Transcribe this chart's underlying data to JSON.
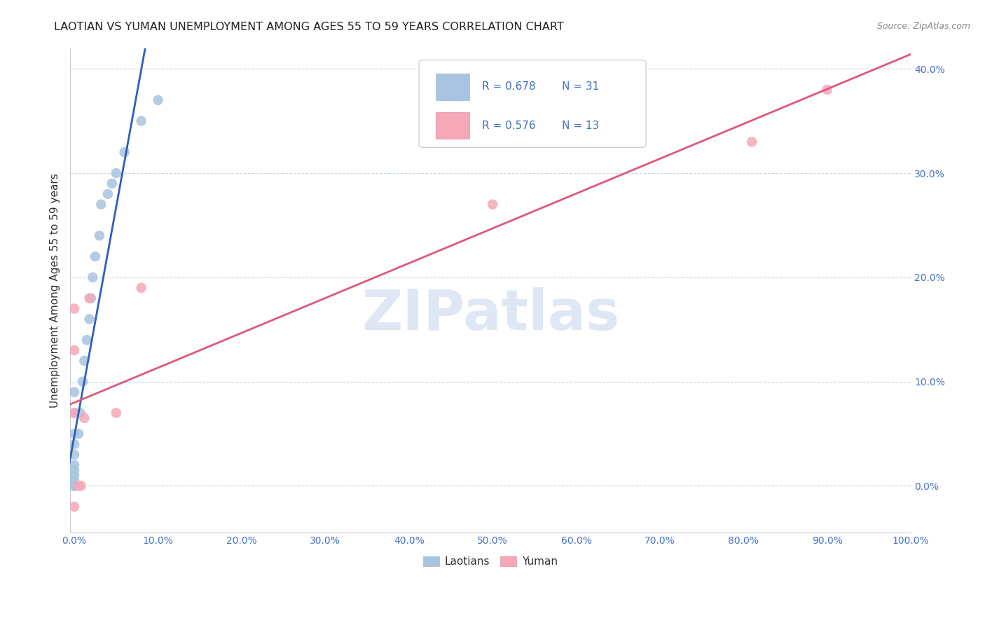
{
  "title": "LAOTIAN VS YUMAN UNEMPLOYMENT AMONG AGES 55 TO 59 YEARS CORRELATION CHART",
  "source": "Source: ZipAtlas.com",
  "ylabel": "Unemployment Among Ages 55 to 59 years",
  "xlim": [
    -0.005,
    1.0
  ],
  "ylim": [
    -0.045,
    0.42
  ],
  "xticks": [
    0.0,
    0.1,
    0.2,
    0.3,
    0.4,
    0.5,
    0.6,
    0.7,
    0.8,
    0.9,
    1.0
  ],
  "xtick_labels": [
    "0.0%",
    "10.0%",
    "20.0%",
    "30.0%",
    "40.0%",
    "50.0%",
    "60.0%",
    "70.0%",
    "80.0%",
    "90.0%",
    "100.0%"
  ],
  "yticks": [
    0.0,
    0.1,
    0.2,
    0.3,
    0.4
  ],
  "ytick_labels": [
    "0.0%",
    "10.0%",
    "20.0%",
    "30.0%",
    "40.0%"
  ],
  "laotian_color": "#a8c4e0",
  "yuman_color": "#f4a8b8",
  "trend_laotian_color": "#2c5fba",
  "trend_yuman_color": "#e05878",
  "R_laotian": 0.678,
  "N_laotian": 31,
  "R_yuman": 0.576,
  "N_yuman": 13,
  "legend_labels": [
    "Laotians",
    "Yuman"
  ],
  "laotian_x": [
    0.0,
    0.0,
    0.0,
    0.0,
    0.0,
    0.0,
    0.0,
    0.0,
    0.0,
    0.0,
    0.0,
    0.0,
    0.0,
    0.0,
    0.005,
    0.007,
    0.01,
    0.012,
    0.015,
    0.018,
    0.02,
    0.022,
    0.025,
    0.03,
    0.032,
    0.04,
    0.045,
    0.05,
    0.06,
    0.08,
    0.1
  ],
  "laotian_y": [
    0.0,
    0.0,
    0.0,
    0.0,
    0.0,
    0.005,
    0.01,
    0.015,
    0.02,
    0.03,
    0.04,
    0.05,
    0.07,
    0.09,
    0.05,
    0.07,
    0.1,
    0.12,
    0.14,
    0.16,
    0.18,
    0.2,
    0.22,
    0.24,
    0.27,
    0.28,
    0.29,
    0.3,
    0.32,
    0.35,
    0.37
  ],
  "yuman_x": [
    0.0,
    0.0,
    0.0,
    0.0,
    0.005,
    0.008,
    0.012,
    0.018,
    0.05,
    0.08,
    0.5,
    0.81,
    0.9
  ],
  "yuman_y": [
    0.17,
    0.13,
    0.07,
    -0.02,
    0.0,
    0.0,
    0.065,
    0.18,
    0.07,
    0.19,
    0.27,
    0.33,
    0.38
  ],
  "watermark_text": "ZIPatlas",
  "watermark_color": "#c8d8ec",
  "background_color": "#ffffff",
  "grid_color": "#c8d8e8",
  "tick_color": "#4472c4",
  "title_color": "#222222",
  "source_color": "#888888",
  "legend_text_color": "#333333",
  "ylabel_color": "#333333"
}
